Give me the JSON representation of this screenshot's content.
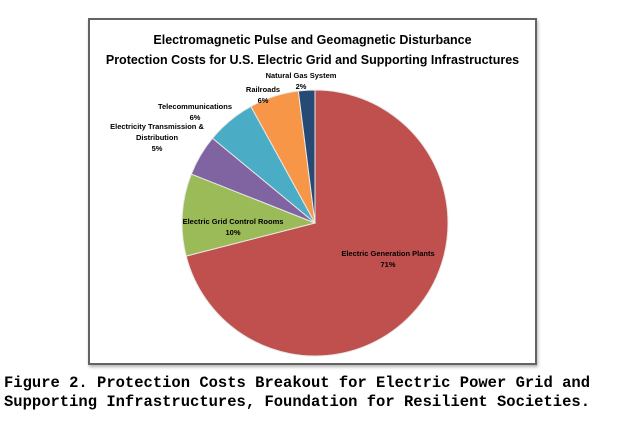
{
  "figure": {
    "title_line1": "Electromagnetic Pulse and Geomagnetic Disturbance",
    "title_line2": "Protection Costs for U.S. Electric Grid and Supporting Infrastructures",
    "caption_line1": "Figure 2. Protection Costs Breakout for Electric Power Grid and",
    "caption_line2": "Supporting Infrastructures, Foundation for Resilient Societies."
  },
  "chart_data": {
    "type": "pie",
    "title": "Electromagnetic Pulse and Geomagnetic Disturbance Protection Costs for U.S. Electric Grid and Supporting Infrastructures",
    "start_angle_deg": 0,
    "direction": "clockwise",
    "legend": "none",
    "slices": [
      {
        "label": "Electric Generation Plants",
        "pct": 71,
        "color": "#C0504D",
        "display": [
          "Electric Generation Plants",
          "71%"
        ]
      },
      {
        "label": "Electric Grid Control Rooms",
        "pct": 10,
        "color": "#9BBB59",
        "display": [
          "Electric Grid Control Rooms",
          "10%"
        ]
      },
      {
        "label": "Electricity Transmission & Distribution",
        "pct": 5,
        "color": "#8064A2",
        "display": [
          "Electricity Transmission &",
          "Distribution",
          "5%"
        ]
      },
      {
        "label": "Telecommunications",
        "pct": 6,
        "color": "#4BACC6",
        "display": [
          "Telecommunications",
          "6%"
        ]
      },
      {
        "label": "Railroads",
        "pct": 6,
        "color": "#F79646",
        "display": [
          "Railroads",
          "6%"
        ]
      },
      {
        "label": "Natural Gas System",
        "pct": 2,
        "color": "#264A73",
        "display": [
          "Natural Gas System",
          "2%"
        ]
      }
    ]
  }
}
